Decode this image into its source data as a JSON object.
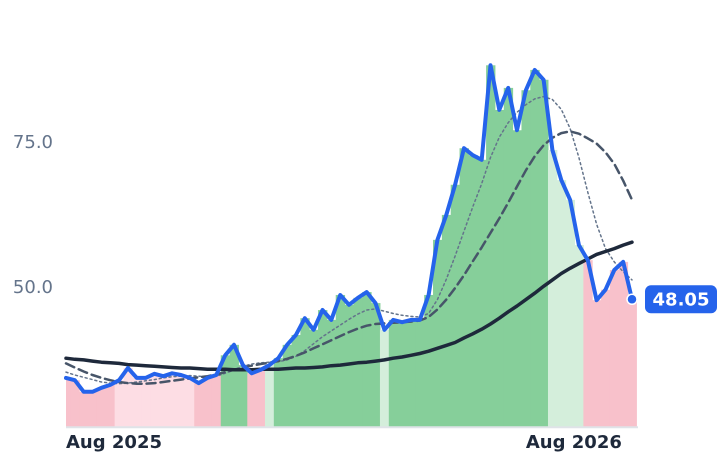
{
  "chart_data": {
    "type": "line",
    "categories": [
      "Aug 2025",
      null,
      null,
      null,
      null,
      null,
      null,
      null,
      null,
      null,
      null,
      null,
      null,
      null,
      null,
      null,
      null,
      null,
      null,
      null,
      null,
      null,
      null,
      null,
      null,
      null,
      null,
      null,
      null,
      null,
      null,
      null,
      null,
      null,
      null,
      null,
      null,
      null,
      null,
      null,
      null,
      null,
      null,
      null,
      null,
      null,
      null,
      null,
      null,
      null,
      null,
      null,
      "Aug 2026",
      null,
      null,
      null,
      null,
      null,
      null,
      null,
      null,
      null,
      null,
      null,
      null
    ],
    "series": [
      {
        "color": "#64748b",
        "style": "dotted",
        "width": 1.5,
        "values": [
          35.5,
          35.0,
          34.6,
          34.2,
          33.8,
          33.6,
          33.5,
          33.6,
          33.8,
          34.0,
          34.2,
          34.5,
          34.7,
          34.8,
          34.9,
          34.8,
          34.7,
          34.8,
          35.3,
          35.9,
          36.5,
          36.9,
          37.1,
          37.2,
          37.3,
          37.6,
          38.2,
          39.2,
          40.4,
          41.6,
          42.6,
          43.6,
          44.6,
          45.5,
          46.2,
          46.4,
          46.0,
          45.6,
          45.3,
          45.1,
          45.0,
          45.6,
          48.0,
          51.5,
          55.5,
          59.8,
          64.0,
          68.0,
          72.5,
          76.0,
          78.5,
          80.3,
          81.6,
          82.6,
          83.0,
          82.5,
          80.8,
          77.5,
          72.5,
          66.5,
          61.0,
          56.8,
          54.5,
          52.8,
          51.4
        ]
      },
      {
        "color": "#475569",
        "style": "dashed",
        "width": 2.5,
        "values": [
          37.0,
          36.3,
          35.6,
          35.0,
          34.5,
          34.1,
          33.8,
          33.6,
          33.5,
          33.5,
          33.6,
          33.8,
          34.0,
          34.2,
          34.4,
          34.6,
          34.8,
          35.1,
          35.5,
          35.9,
          36.3,
          36.6,
          36.9,
          37.1,
          37.4,
          37.8,
          38.3,
          38.9,
          39.6,
          40.3,
          41.0,
          41.7,
          42.4,
          43.0,
          43.5,
          43.8,
          43.9,
          44.0,
          44.1,
          44.2,
          44.4,
          45.0,
          46.3,
          48.0,
          50.0,
          52.2,
          54.6,
          57.0,
          59.5,
          62.0,
          64.7,
          67.5,
          70.3,
          72.7,
          74.6,
          75.9,
          76.7,
          77.0,
          76.6,
          75.8,
          74.9,
          73.4,
          71.4,
          68.5,
          65.2
        ]
      },
      {
        "color": "#1e293b",
        "style": "solid",
        "width": 3.5,
        "values": [
          37.9,
          37.7,
          37.6,
          37.4,
          37.2,
          37.1,
          37.0,
          36.8,
          36.7,
          36.6,
          36.5,
          36.4,
          36.3,
          36.2,
          36.2,
          36.1,
          36.0,
          36.0,
          36.0,
          35.9,
          35.9,
          35.9,
          36.0,
          36.0,
          36.0,
          36.1,
          36.2,
          36.2,
          36.3,
          36.4,
          36.6,
          36.7,
          36.9,
          37.1,
          37.2,
          37.4,
          37.6,
          37.9,
          38.1,
          38.4,
          38.7,
          39.1,
          39.6,
          40.1,
          40.6,
          41.4,
          42.1,
          42.9,
          43.8,
          44.8,
          45.9,
          46.9,
          48.0,
          49.1,
          50.3,
          51.4,
          52.5,
          53.4,
          54.2,
          55.0,
          55.8,
          56.3,
          56.8,
          57.4,
          57.9
        ]
      },
      {
        "color": "#2563eb",
        "style": "solid",
        "width": 4,
        "values": [
          34.5,
          34.1,
          32.1,
          32.1,
          32.8,
          33.3,
          34.1,
          36.2,
          34.5,
          34.5,
          35.2,
          34.8,
          35.3,
          35.0,
          34.5,
          33.6,
          34.5,
          35.0,
          38.4,
          40.2,
          36.7,
          35.3,
          35.9,
          36.7,
          37.9,
          40.2,
          41.9,
          44.8,
          42.8,
          46.2,
          44.5,
          48.8,
          47.1,
          48.3,
          49.3,
          47.4,
          42.8,
          44.5,
          44.1,
          44.5,
          44.5,
          48.8,
          58.3,
          62.6,
          67.8,
          74.1,
          72.9,
          72.1,
          88.4,
          80.7,
          84.5,
          77.2,
          84.1,
          87.6,
          85.9,
          73.8,
          68.6,
          65.2,
          57.4,
          54.8,
          47.9,
          49.7,
          53.1,
          54.5,
          48.05
        ]
      }
    ],
    "area_colors": [
      "#86cf9a",
      "#d4eedb",
      "#fddde4",
      "#f8c1cb"
    ],
    "ylim": [
      26,
      96
    ],
    "yticks": [
      {
        "value": 50,
        "label": "50.0"
      },
      {
        "value": 75,
        "label": "75.0"
      }
    ],
    "grid": false
  }
}
